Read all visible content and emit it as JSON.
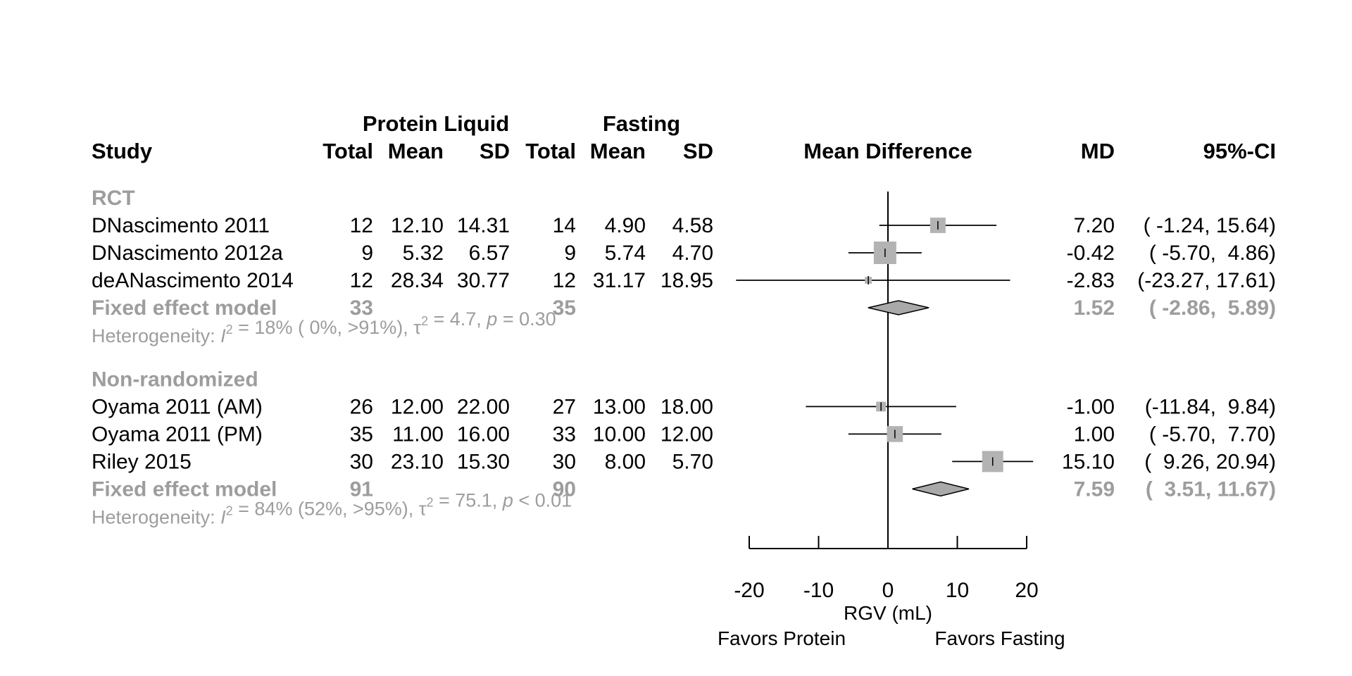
{
  "chart_data": {
    "type": "forest",
    "columns": {
      "group1_label": "Protein Liquid",
      "group2_label": "Fasting",
      "study": "Study",
      "total": "Total",
      "mean": "Mean",
      "sd": "SD",
      "effect": "Mean Difference",
      "md": "MD",
      "ci": "95%-CI"
    },
    "subgroups": [
      {
        "name": "RCT",
        "studies": [
          {
            "study": "DNascimento 2011",
            "t1": "12",
            "m1": "12.10",
            "s1": "14.31",
            "t2": "14",
            "m2": "4.90",
            "s2": "4.58",
            "md": 7.2,
            "lo": -1.24,
            "hi": 15.64,
            "md_text": "7.20",
            "ci_text": "( -1.24, 15.64)",
            "weight": 0.3
          },
          {
            "study": "DNascimento 2012a",
            "t1": "9",
            "m1": "5.32",
            "s1": "6.57",
            "t2": "9",
            "m2": "5.74",
            "s2": "4.70",
            "md": -0.42,
            "lo": -5.7,
            "hi": 4.86,
            "md_text": "-0.42",
            "ci_text": "( -5.70,  4.86)",
            "weight": 0.64
          },
          {
            "study": "deANascimento 2014",
            "t1": "12",
            "m1": "28.34",
            "s1": "30.77",
            "t2": "12",
            "m2": "31.17",
            "s2": "18.95",
            "md": -2.83,
            "lo": -23.27,
            "hi": 17.61,
            "md_text": "-2.83",
            "ci_text": "(-23.27, 17.61)",
            "weight": 0.06
          }
        ],
        "fixed": {
          "label": "Fixed effect model",
          "t1": "33",
          "t2": "35",
          "md": 1.52,
          "lo": -2.86,
          "hi": 5.89,
          "md_text": "1.52",
          "ci_text": "( -2.86,  5.89)"
        },
        "heterogeneity": {
          "prefix": "Heterogeneity: ",
          "i2_sym": "I",
          "i2_rest": " = 18% ( 0%, >91%), ",
          "tau_sym": "τ",
          "tau_rest": " = 4.7, ",
          "p_sym": "p",
          "p_rest": " = 0.30"
        }
      },
      {
        "name": "Non-randomized",
        "studies": [
          {
            "study": "Oyama 2011 (AM)",
            "t1": "26",
            "m1": "12.00",
            "s1": "22.00",
            "t2": "27",
            "m2": "13.00",
            "s2": "18.00",
            "md": -1.0,
            "lo": -11.84,
            "hi": 9.84,
            "md_text": "-1.00",
            "ci_text": "(-11.84,  9.84)",
            "weight": 0.12
          },
          {
            "study": "Oyama 2011 (PM)",
            "t1": "35",
            "m1": "11.00",
            "s1": "16.00",
            "t2": "33",
            "m2": "10.00",
            "s2": "12.00",
            "md": 1.0,
            "lo": -5.7,
            "hi": 7.7,
            "md_text": "1.00",
            "ci_text": "( -5.70,  7.70)",
            "weight": 0.32
          },
          {
            "study": "Riley 2015",
            "t1": "30",
            "m1": "23.10",
            "s1": "15.30",
            "t2": "30",
            "m2": "8.00",
            "s2": "5.70",
            "md": 15.1,
            "lo": 9.26,
            "hi": 20.94,
            "md_text": "15.10",
            "ci_text": "(  9.26, 20.94)",
            "weight": 0.56
          }
        ],
        "fixed": {
          "label": "Fixed effect model",
          "t1": "91",
          "t2": "90",
          "md": 7.59,
          "lo": 3.51,
          "hi": 11.67,
          "md_text": "7.59",
          "ci_text": "(  3.51, 11.67)"
        },
        "heterogeneity": {
          "prefix": "Heterogeneity: ",
          "i2_sym": "I",
          "i2_rest": " = 84% (52%, >95%), ",
          "tau_sym": "τ",
          "tau_rest": " = 75.1, ",
          "p_sym": "p",
          "p_rest": " < 0.01"
        }
      }
    ],
    "axis": {
      "xlim": [
        -20,
        20
      ],
      "ticks": [
        -20,
        -10,
        0,
        10,
        20
      ],
      "xlabel": "RGV (mL)",
      "label_left": "Favors Protein",
      "label_right": "Favors Fasting",
      "reference_line": 0
    },
    "colors": {
      "square": "#b3b3b3",
      "diamond": "#a9a9a9",
      "summary_text": "#9d9d9d",
      "line": "#000000"
    }
  }
}
